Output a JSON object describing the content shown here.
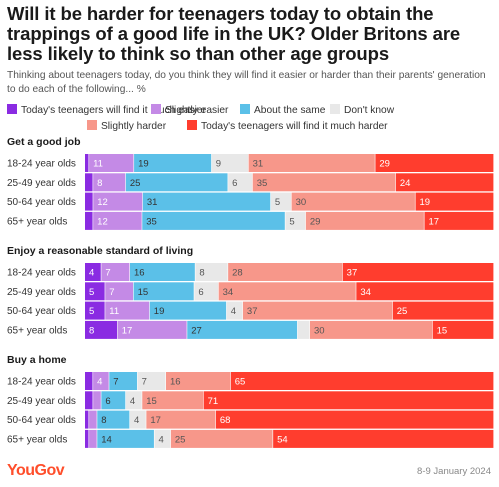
{
  "title": "Will it be harder for teenagers today to obtain the trappings of a good life in the UK? Older Britons are less likely to think so than other age groups",
  "subtitle": "Thinking about teenagers today, do you think they will find it easier or harder than their parents' generation to do each of the following... %",
  "logo_text": "YouGov",
  "date_text": "8-9 January 2024",
  "colors": {
    "much_easier": "#8a2be2",
    "slightly_easier": "#c48ae6",
    "same": "#5bc0e8",
    "dont_know": "#e8e8e8",
    "slightly_harder": "#f7978a",
    "much_harder": "#ff3d2e"
  },
  "chart_data": {
    "type": "bar",
    "stacked": true,
    "orientation": "horizontal",
    "xlim": [
      0,
      100
    ],
    "series": [
      {
        "name": "Today's teenagers will find it much easier",
        "color": "#8a2be2"
      },
      {
        "name": "Slightly easier",
        "color": "#c48ae6"
      },
      {
        "name": "About the same",
        "color": "#5bc0e8"
      },
      {
        "name": "Don't know",
        "color": "#e8e8e8"
      },
      {
        "name": "Slightly harder",
        "color": "#f7978a"
      },
      {
        "name": "Today's teenagers will find it much harder",
        "color": "#ff3d2e"
      }
    ],
    "groups": [
      {
        "title": "Get a good job",
        "rows": [
          {
            "label": "18-24 year olds",
            "values": [
              1,
              11,
              19,
              9,
              31,
              29
            ]
          },
          {
            "label": "25-49 year olds",
            "values": [
              2,
              8,
              25,
              6,
              35,
              24
            ]
          },
          {
            "label": "50-64 year olds",
            "values": [
              2,
              12,
              31,
              5,
              30,
              19
            ]
          },
          {
            "label": "65+ year olds",
            "values": [
              2,
              12,
              35,
              5,
              29,
              17
            ]
          }
        ]
      },
      {
        "title": "Enjoy a reasonable standard of living",
        "rows": [
          {
            "label": "18-24 year olds",
            "values": [
              4,
              7,
              16,
              8,
              28,
              37
            ]
          },
          {
            "label": "25-49 year olds",
            "values": [
              5,
              7,
              15,
              6,
              34,
              34
            ]
          },
          {
            "label": "50-64 year olds",
            "values": [
              5,
              11,
              19,
              4,
              37,
              25
            ]
          },
          {
            "label": "65+ year olds",
            "values": [
              8,
              17,
              27,
              3,
              30,
              15
            ]
          }
        ]
      },
      {
        "title": "Buy a home",
        "rows": [
          {
            "label": "18-24 year olds",
            "values": [
              2,
              4,
              7,
              7,
              16,
              65
            ]
          },
          {
            "label": "25-49 year olds",
            "values": [
              2,
              2,
              6,
              4,
              15,
              71
            ]
          },
          {
            "label": "50-64 year olds",
            "values": [
              1,
              2,
              8,
              4,
              17,
              68
            ]
          },
          {
            "label": "65+ year olds",
            "values": [
              1,
              2,
              14,
              4,
              25,
              54
            ]
          }
        ]
      }
    ],
    "labels_hidden_below": 4
  }
}
